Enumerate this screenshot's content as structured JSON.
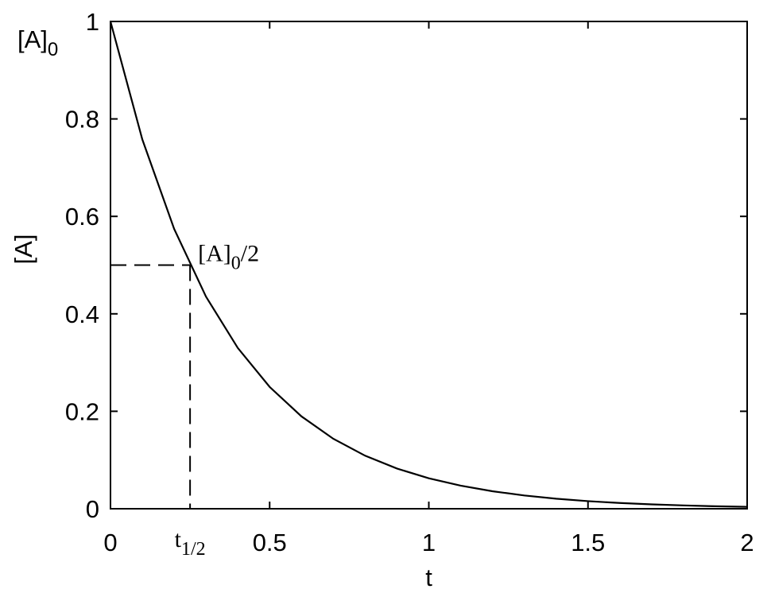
{
  "chart_data": {
    "type": "line",
    "x_label": "t",
    "y_label": "[A]",
    "x": [
      0,
      0.1,
      0.2,
      0.3,
      0.4,
      0.5,
      0.6,
      0.7,
      0.8,
      0.9,
      1.0,
      1.1,
      1.2,
      1.3,
      1.4,
      1.5,
      1.6,
      1.7,
      1.8,
      1.9,
      2.0
    ],
    "series": [
      {
        "color": "#000000",
        "values": [
          1,
          0.7579,
          0.5743,
          0.4353,
          0.3299,
          0.25,
          0.1895,
          0.1436,
          0.1088,
          0.0825,
          0.0625,
          0.0474,
          0.0359,
          0.0272,
          0.0206,
          0.0156,
          0.0118,
          0.009,
          0.0068,
          0.0051,
          0.0039
        ]
      }
    ],
    "xlim": [
      0,
      2
    ],
    "ylim": [
      0,
      1
    ],
    "xticks": [
      0,
      0.5,
      1,
      1.5,
      2
    ],
    "yticks": [
      0,
      0.2,
      0.4,
      0.6,
      0.8,
      1
    ],
    "y_max_label": {
      "main": "[A]",
      "sub": "0"
    },
    "half_life": {
      "x": 0.25,
      "y": 0.5,
      "x_text": {
        "main": "t",
        "sub": "1/2"
      },
      "point_text": {
        "main": "[A]",
        "sub": "0",
        "suffix": "/2"
      }
    }
  }
}
